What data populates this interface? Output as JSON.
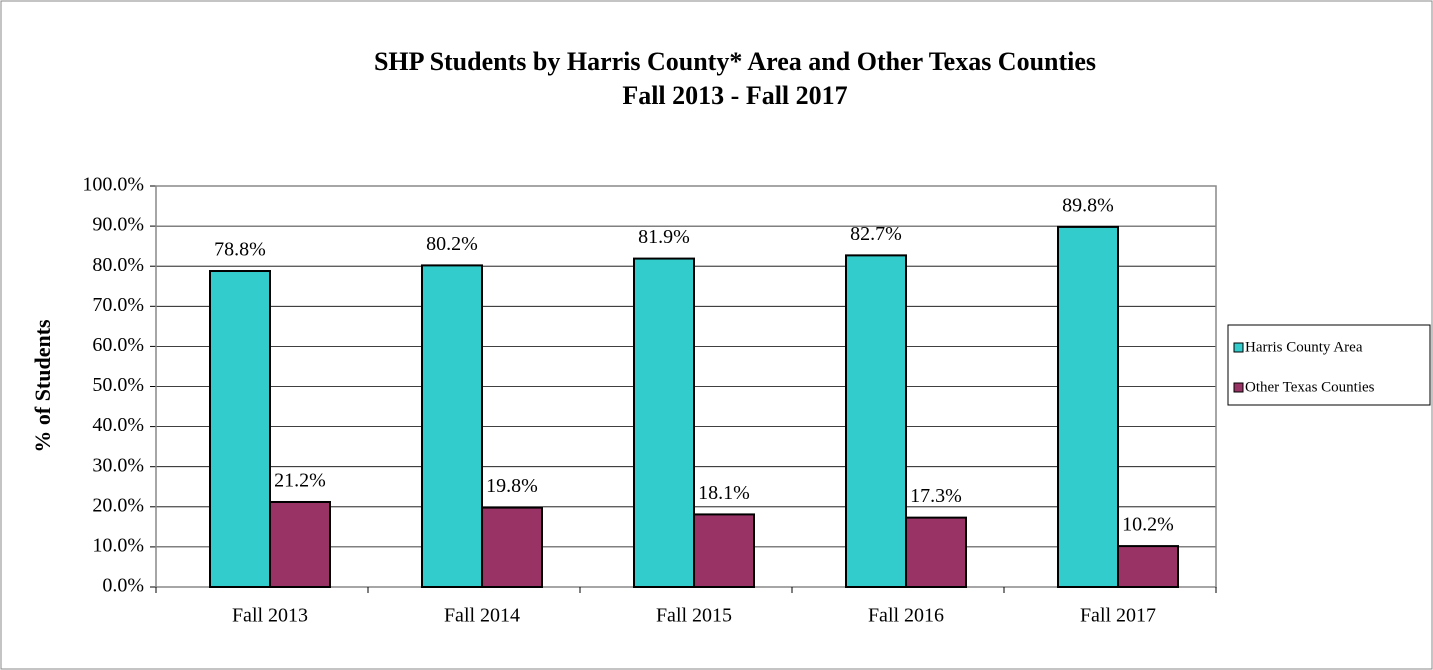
{
  "chart_data": {
    "type": "bar",
    "title": "SHP Students by Harris County* Area and Other Texas Counties",
    "subtitle": "Fall 2013 - Fall 2017",
    "y_label": "% of Students",
    "categories": [
      "Fall 2013",
      "Fall 2014",
      "Fall 2015",
      "Fall 2016",
      "Fall 2017"
    ],
    "series": [
      {
        "name": "Harris County Area",
        "color": "#33cccc",
        "values": [
          78.8,
          80.2,
          81.9,
          82.7,
          89.8
        ],
        "value_labels": [
          "78.8%",
          "80.2%",
          "81.9%",
          "82.7%",
          "89.8%"
        ]
      },
      {
        "name": "Other Texas Counties",
        "color": "#993366",
        "values": [
          21.2,
          19.8,
          18.1,
          17.3,
          10.2
        ],
        "value_labels": [
          "21.2%",
          "19.8%",
          "18.1%",
          "17.3%",
          "10.2%"
        ]
      }
    ],
    "ylim": [
      0,
      100
    ],
    "yticks": [
      {
        "value": 0,
        "label": "0.0%"
      },
      {
        "value": 10,
        "label": "10.0%"
      },
      {
        "value": 20,
        "label": "20.0%"
      },
      {
        "value": 30,
        "label": "30.0%"
      },
      {
        "value": 40,
        "label": "40.0%"
      },
      {
        "value": 50,
        "label": "50.0%"
      },
      {
        "value": 60,
        "label": "60.0%"
      },
      {
        "value": 70,
        "label": "70.0%"
      },
      {
        "value": 80,
        "label": "80.0%"
      },
      {
        "value": 90,
        "label": "90.0%"
      },
      {
        "value": 100,
        "label": "100.0%"
      }
    ],
    "grid": true,
    "legend": "right"
  }
}
